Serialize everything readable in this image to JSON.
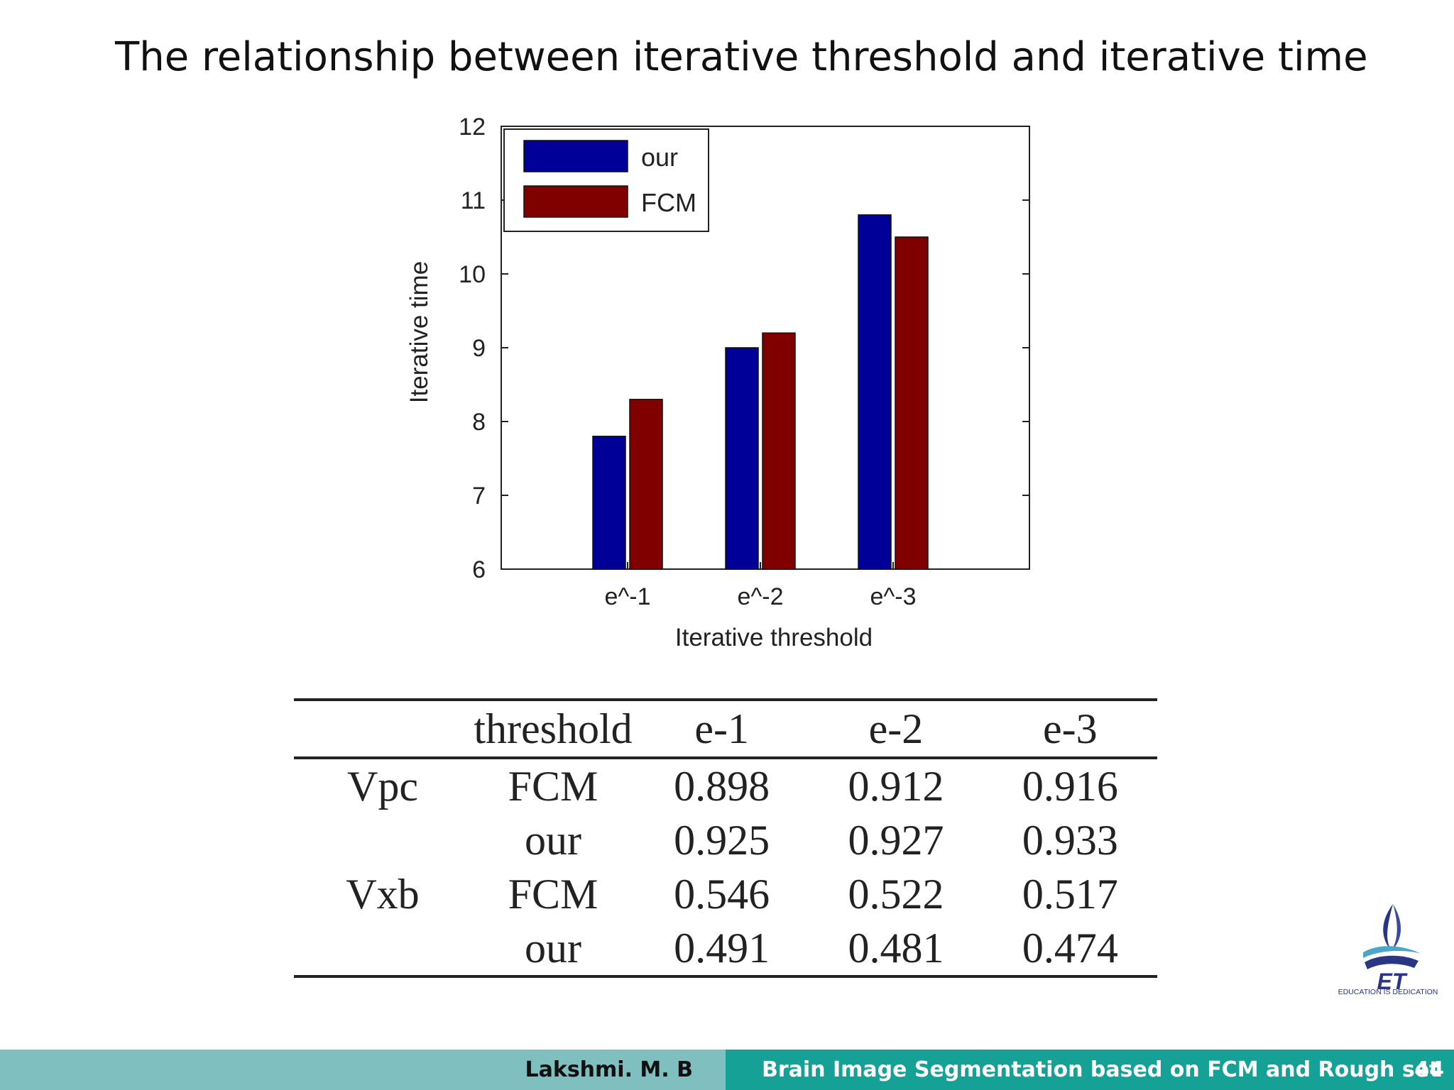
{
  "slide": {
    "title": "The relationship between iterative threshold and iterative time"
  },
  "chart_data": {
    "type": "bar",
    "title": "",
    "xlabel": "Iterative threshold",
    "ylabel": "Iterative time",
    "categories": [
      "e^-1",
      "e^-2",
      "e^-3"
    ],
    "series": [
      {
        "name": "our",
        "color": "#000099",
        "values": [
          7.8,
          9.0,
          10.8
        ]
      },
      {
        "name": "FCM",
        "color": "#800000",
        "values": [
          8.3,
          9.2,
          10.5
        ]
      }
    ],
    "ylim": [
      6,
      12
    ],
    "yticks": [
      "6",
      "7",
      "8",
      "9",
      "10",
      "11",
      "12"
    ],
    "legend_position": "top-left",
    "grid": false
  },
  "table": {
    "header": [
      "",
      "threshold",
      "e-1",
      "e-2",
      "e-3"
    ],
    "rows": [
      [
        "Vpc",
        "FCM",
        "0.898",
        "0.912",
        "0.916"
      ],
      [
        "",
        "our",
        "0.925",
        "0.927",
        "0.933"
      ],
      [
        "Vxb",
        "FCM",
        "0.546",
        "0.522",
        "0.517"
      ],
      [
        "",
        "our",
        "0.491",
        "0.481",
        "0.474"
      ]
    ]
  },
  "logo": {
    "caption": "EDUCATION IS DEDICATION",
    "colors": {
      "flame": "#2a3585",
      "accent": "#4aa7c9"
    }
  },
  "footer": {
    "author": "Lakshmi.  M. B",
    "title": "Brain Image Segmentation based on FCM and Rough set",
    "page": "44",
    "colors": {
      "left": "#7fbfbf",
      "right": "#16a196"
    }
  }
}
